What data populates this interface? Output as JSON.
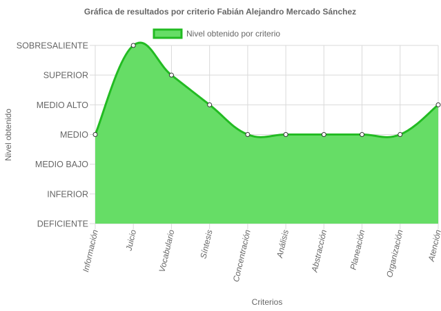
{
  "chart_data": {
    "type": "area",
    "title": "Gráfica de resultados por criterio Fabián Alejandro Mercado Sánchez",
    "xlabel": "Criterios",
    "ylabel": "Nivel obtenido",
    "y_levels": [
      "DEFICIENTE",
      "INFERIOR",
      "MEDIO BAJO",
      "MEDIO",
      "MEDIO ALTO",
      "SUPERIOR",
      "SOBRESALIENTE"
    ],
    "ylim": [
      0,
      6
    ],
    "categories": [
      "Información",
      "Juicio",
      "Vocabulario",
      "Síntesis",
      "Concentración",
      "Análisis",
      "Abstracción",
      "Planeación",
      "Organización",
      "Atención"
    ],
    "series": [
      {
        "name": "Nivel obtenido por criterio",
        "values": [
          3,
          6,
          5,
          4,
          3,
          3,
          3,
          3,
          3,
          4
        ]
      }
    ],
    "legend_position": "top",
    "grid": true,
    "colors": {
      "fill": "#66dd66",
      "line": "#22bb22",
      "grid": "#d9d9d9",
      "text": "#666666"
    }
  }
}
